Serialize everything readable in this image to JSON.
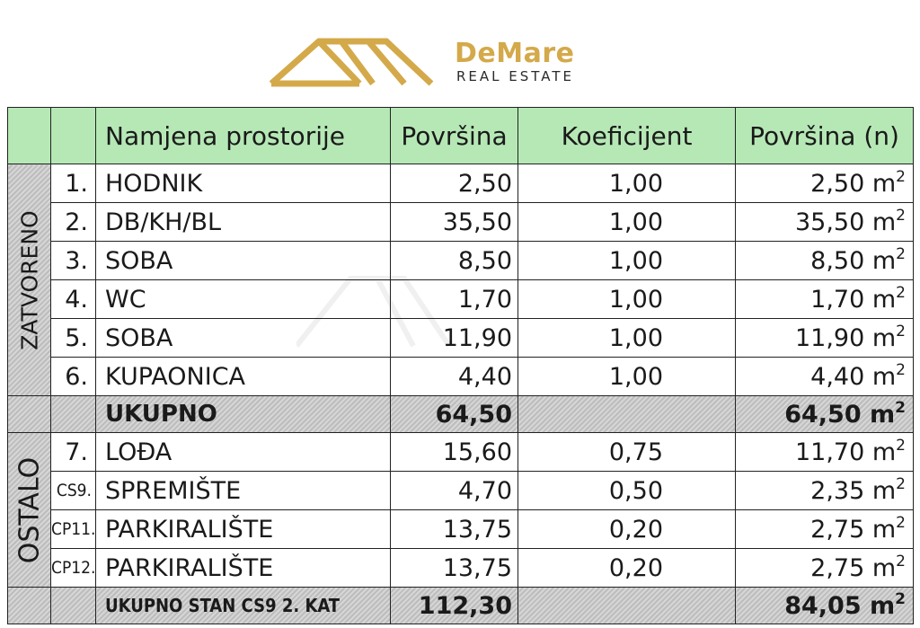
{
  "brand": {
    "name": "DeMare",
    "tagline": "REAL ESTATE",
    "accent": "#d4a94a"
  },
  "table": {
    "headers": [
      "Namjena prostorije",
      "Površina",
      "Koeficijent",
      "Površina (n)"
    ],
    "groups": {
      "closed": "ZATVORENO",
      "other": "OSTALO"
    },
    "unit": "m",
    "unit_exp": "2",
    "rows_closed": [
      {
        "no": "1.",
        "name": "HODNIK",
        "area": "2,50",
        "coef": "1,00",
        "narea": "2,50"
      },
      {
        "no": "2.",
        "name": "DB/KH/BL",
        "area": "35,50",
        "coef": "1,00",
        "narea": "35,50"
      },
      {
        "no": "3.",
        "name": "SOBA",
        "area": "8,50",
        "coef": "1,00",
        "narea": "8,50"
      },
      {
        "no": "4.",
        "name": "WC",
        "area": "1,70",
        "coef": "1,00",
        "narea": "1,70"
      },
      {
        "no": "5.",
        "name": "SOBA",
        "area": "11,90",
        "coef": "1,00",
        "narea": "11,90"
      },
      {
        "no": "6.",
        "name": "KUPAONICA",
        "area": "4,40",
        "coef": "1,00",
        "narea": "4,40"
      }
    ],
    "subtotal": {
      "name": "UKUPNO",
      "area": "64,50",
      "narea": "64,50"
    },
    "rows_other": [
      {
        "no": "7.",
        "name": "LOĐA",
        "area": "15,60",
        "coef": "0,75",
        "narea": "11,70"
      },
      {
        "no": "CS9.",
        "name": "SPREMIŠTE",
        "area": "4,70",
        "coef": "0,50",
        "narea": "2,35"
      },
      {
        "no": "CP11.",
        "name": "PARKIRALIŠTE",
        "area": "13,75",
        "coef": "0,20",
        "narea": "2,75"
      },
      {
        "no": "CP12.",
        "name": "PARKIRALIŠTE",
        "area": "13,75",
        "coef": "0,20",
        "narea": "2,75"
      }
    ],
    "total": {
      "name": "UKUPNO STAN CS9 2. KAT",
      "area": "112,30",
      "narea": "84,05"
    }
  }
}
